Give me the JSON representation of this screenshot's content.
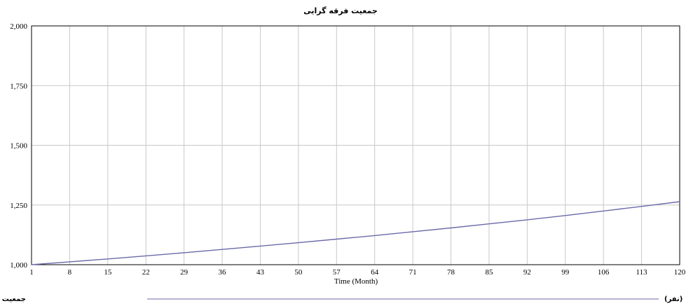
{
  "chart_data": {
    "type": "line",
    "title": "جمعیت فرقه گرایی",
    "xlabel": "Time (Month)",
    "ylabel": "",
    "xlim": [
      1,
      120
    ],
    "ylim": [
      1000,
      2000
    ],
    "xticks": [
      1,
      8,
      15,
      22,
      29,
      36,
      43,
      50,
      57,
      64,
      71,
      78,
      85,
      92,
      99,
      106,
      113,
      120
    ],
    "yticks": [
      1000,
      1250,
      1500,
      1750,
      2000
    ],
    "ytick_labels": [
      "1,000",
      "1,250",
      "1,500",
      "1,750",
      "2,000"
    ],
    "grid": true,
    "legend_position": "bottom",
    "series": [
      {
        "name": "جمعیت فرقه گرایان ( آزمون شرایط حدی )",
        "unit": "(نفر)",
        "color": "#6b6aa8",
        "x": [
          1,
          8,
          15,
          22,
          29,
          36,
          43,
          50,
          57,
          64,
          71,
          78,
          85,
          92,
          99,
          106,
          113,
          120
        ],
        "y": [
          1000,
          1012,
          1024,
          1037,
          1050,
          1064,
          1078,
          1092,
          1107,
          1122,
          1138,
          1154,
          1171,
          1188,
          1206,
          1225,
          1244,
          1264
        ]
      }
    ]
  }
}
